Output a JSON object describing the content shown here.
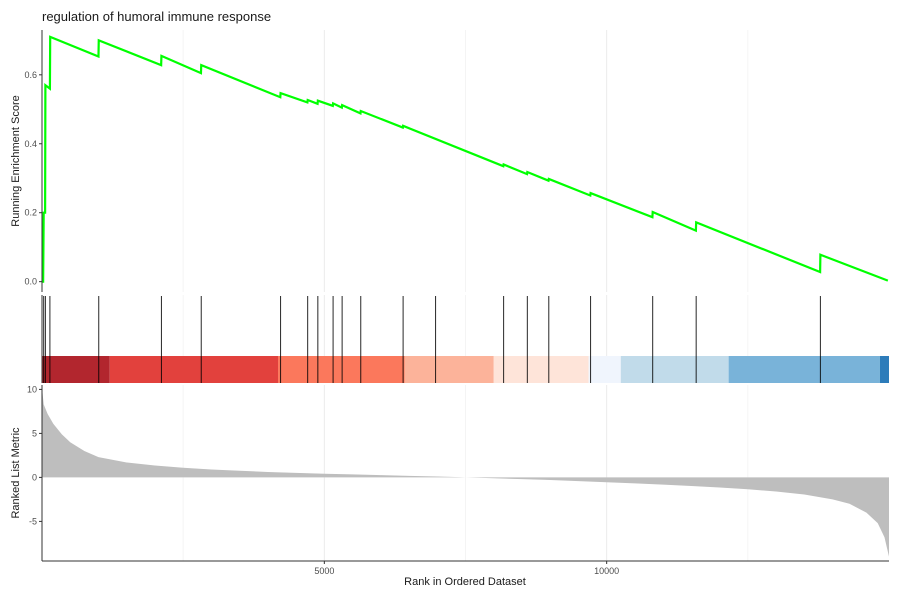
{
  "chart_data": {
    "type": "line",
    "title": "regulation of humoral immune response",
    "xlabel": "Rank in Ordered Dataset",
    "ylabel_top": "Running Enrichment Score",
    "ylabel_bottom": "Ranked List Metric",
    "xlim": [
      0,
      15000
    ],
    "ylim_top": [
      -0.03,
      0.73
    ],
    "ylim_bottom": [
      -9.5,
      10.5
    ],
    "x_ticks": [
      5000,
      10000
    ],
    "y_ticks_top": [
      0.0,
      0.2,
      0.4,
      0.6
    ],
    "y_ticks_bottom": [
      -5,
      0,
      5,
      10
    ],
    "grid": true,
    "line_color": "#00ff00",
    "fill_color": "#bebebe",
    "series": [
      {
        "values": [
          [
            0,
            0
          ],
          [
            20,
            0
          ],
          [
            30,
            0.2
          ],
          [
            55,
            0.2
          ],
          [
            60,
            0.57
          ],
          [
            140,
            0.56
          ],
          [
            145,
            0.71
          ],
          [
            1000,
            0.653
          ],
          [
            1005,
            0.7
          ],
          [
            2110,
            0.628
          ],
          [
            2115,
            0.655
          ],
          [
            2815,
            0.605
          ],
          [
            2820,
            0.628
          ],
          [
            4220,
            0.535
          ],
          [
            4225,
            0.547
          ],
          [
            4700,
            0.52
          ],
          [
            4705,
            0.527
          ],
          [
            4880,
            0.516
          ],
          [
            4885,
            0.525
          ],
          [
            5150,
            0.51
          ],
          [
            5155,
            0.517
          ],
          [
            5310,
            0.505
          ],
          [
            5315,
            0.512
          ],
          [
            5640,
            0.488
          ],
          [
            5645,
            0.495
          ],
          [
            6390,
            0.447
          ],
          [
            6395,
            0.452
          ],
          [
            8170,
            0.335
          ],
          [
            8175,
            0.34
          ],
          [
            8590,
            0.312
          ],
          [
            8595,
            0.318
          ],
          [
            8970,
            0.293
          ],
          [
            8975,
            0.298
          ],
          [
            9710,
            0.25
          ],
          [
            9715,
            0.257
          ],
          [
            10810,
            0.187
          ],
          [
            10815,
            0.202
          ],
          [
            11580,
            0.148
          ],
          [
            11585,
            0.172
          ],
          [
            13780,
            0.028
          ],
          [
            13785,
            0.078
          ],
          [
            14980,
            0.003
          ]
        ]
      }
    ],
    "hit_positions": [
      30,
      60,
      140,
      1005,
      2115,
      2820,
      4225,
      4705,
      4885,
      5155,
      5315,
      5645,
      6395,
      6970,
      8175,
      8595,
      8975,
      9715,
      10815,
      11585,
      13785
    ],
    "color_bands": [
      {
        "start": 0,
        "end": 1200,
        "color": "#b2262e"
      },
      {
        "start": 1200,
        "end": 4180,
        "color": "#e2413d"
      },
      {
        "start": 4180,
        "end": 6420,
        "color": "#fb785c"
      },
      {
        "start": 6420,
        "end": 8000,
        "color": "#fcb39a"
      },
      {
        "start": 8000,
        "end": 9680,
        "color": "#fee4d9"
      },
      {
        "start": 9680,
        "end": 10250,
        "color": "#f0f5fd"
      },
      {
        "start": 10250,
        "end": 12160,
        "color": "#c1dbea"
      },
      {
        "start": 12160,
        "end": 14840,
        "color": "#79b3d9"
      },
      {
        "start": 14840,
        "end": 15000,
        "color": "#2d7cba"
      }
    ],
    "ranked_metric": [
      [
        0,
        10.2
      ],
      [
        30,
        8.3
      ],
      [
        100,
        7.2
      ],
      [
        200,
        6.1
      ],
      [
        350,
        4.9
      ],
      [
        500,
        4.0
      ],
      [
        750,
        3.0
      ],
      [
        1000,
        2.3
      ],
      [
        1500,
        1.7
      ],
      [
        2000,
        1.35
      ],
      [
        2500,
        1.1
      ],
      [
        3000,
        0.9
      ],
      [
        3500,
        0.75
      ],
      [
        4000,
        0.62
      ],
      [
        4500,
        0.52
      ],
      [
        5000,
        0.42
      ],
      [
        5500,
        0.34
      ],
      [
        6000,
        0.26
      ],
      [
        6500,
        0.18
      ],
      [
        7000,
        0.1
      ],
      [
        7400,
        0.03
      ],
      [
        7500,
        0
      ],
      [
        8000,
        -0.1
      ],
      [
        8500,
        -0.2
      ],
      [
        9000,
        -0.3
      ],
      [
        9500,
        -0.42
      ],
      [
        10000,
        -0.55
      ],
      [
        10500,
        -0.68
      ],
      [
        11000,
        -0.82
      ],
      [
        11500,
        -0.98
      ],
      [
        12000,
        -1.15
      ],
      [
        12500,
        -1.35
      ],
      [
        13000,
        -1.6
      ],
      [
        13500,
        -1.95
      ],
      [
        14000,
        -2.5
      ],
      [
        14300,
        -3.0
      ],
      [
        14600,
        -4.0
      ],
      [
        14800,
        -5.2
      ],
      [
        14920,
        -6.8
      ],
      [
        15000,
        -9.0
      ]
    ]
  }
}
